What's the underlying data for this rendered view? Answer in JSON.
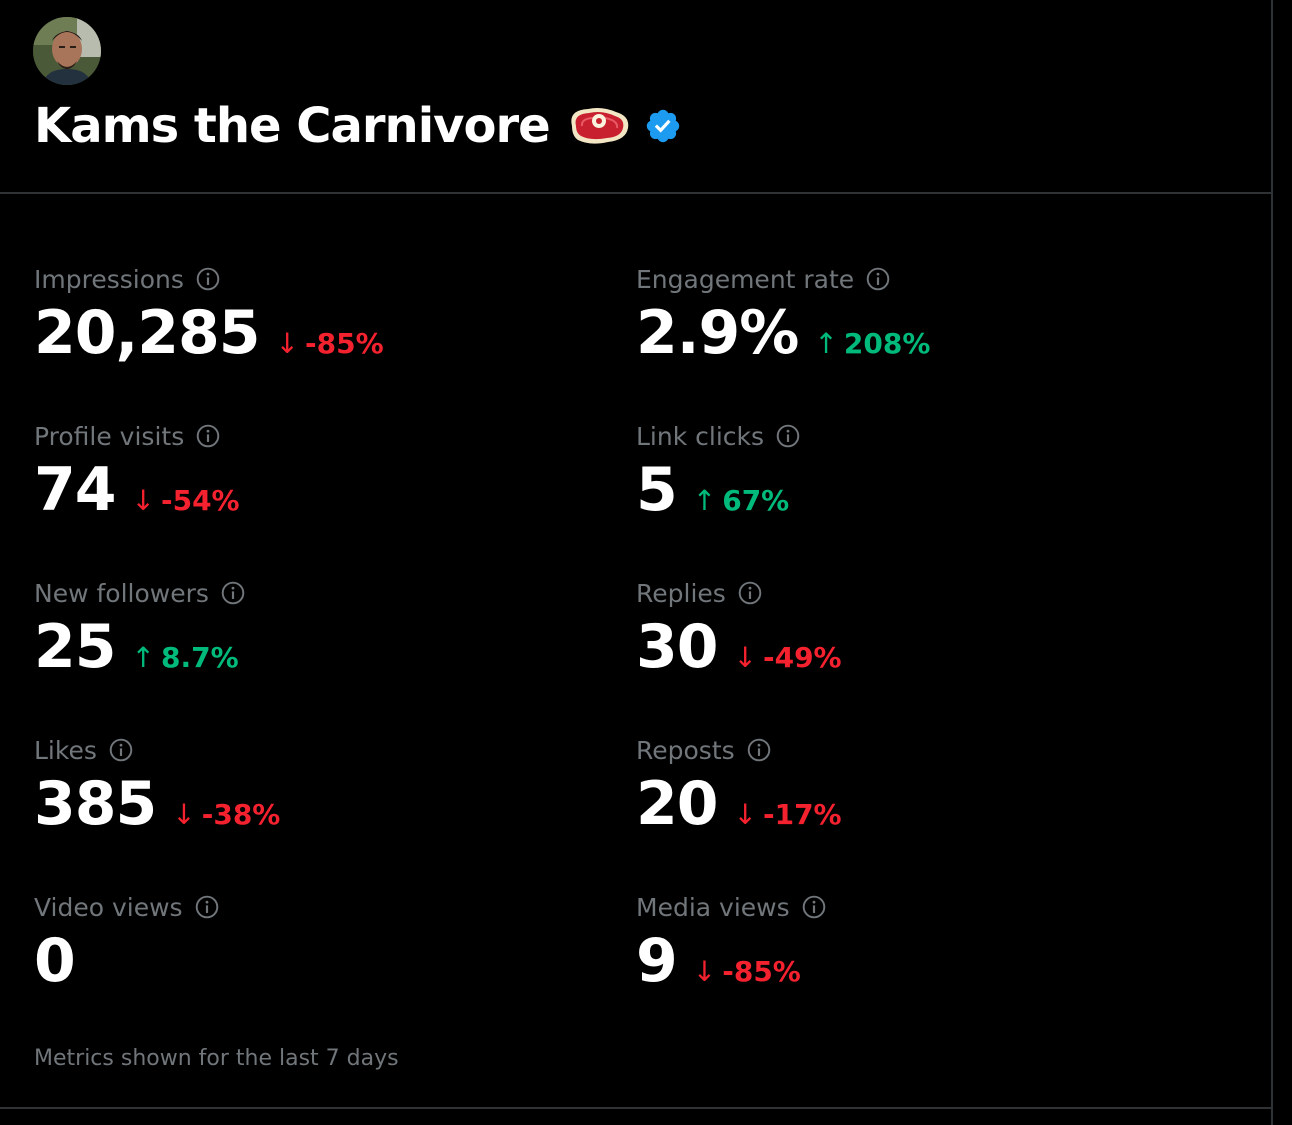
{
  "profile": {
    "display_name": "Kams the Carnivore",
    "avatar_icon": "avatar",
    "emoji_icon": "steak-icon",
    "verified_icon": "verified-badge-icon",
    "verified_color": "#1d9bf0"
  },
  "metrics": [
    {
      "label": "Impressions",
      "value": "20,285",
      "change": "-85%",
      "direction": "down"
    },
    {
      "label": "Engagement rate",
      "value": "2.9%",
      "change": "208%",
      "direction": "up"
    },
    {
      "label": "Profile visits",
      "value": "74",
      "change": "-54%",
      "direction": "down"
    },
    {
      "label": "Link clicks",
      "value": "5",
      "change": "67%",
      "direction": "up"
    },
    {
      "label": "New followers",
      "value": "25",
      "change": "8.7%",
      "direction": "up"
    },
    {
      "label": "Replies",
      "value": "30",
      "change": "-49%",
      "direction": "down"
    },
    {
      "label": "Likes",
      "value": "385",
      "change": "-38%",
      "direction": "down"
    },
    {
      "label": "Reposts",
      "value": "20",
      "change": "-17%",
      "direction": "down"
    },
    {
      "label": "Video views",
      "value": "0",
      "change": "",
      "direction": "none"
    },
    {
      "label": "Media views",
      "value": "9",
      "change": "-85%",
      "direction": "down"
    }
  ],
  "arrows": {
    "up": "↑",
    "down": "↓"
  },
  "colors": {
    "background": "#000000",
    "label": "#71767b",
    "value": "#ffffff",
    "up": "#00ba7c",
    "down": "#f4212e",
    "divider": "#2f3336"
  },
  "footer": {
    "note": "Metrics shown for the last 7 days"
  }
}
